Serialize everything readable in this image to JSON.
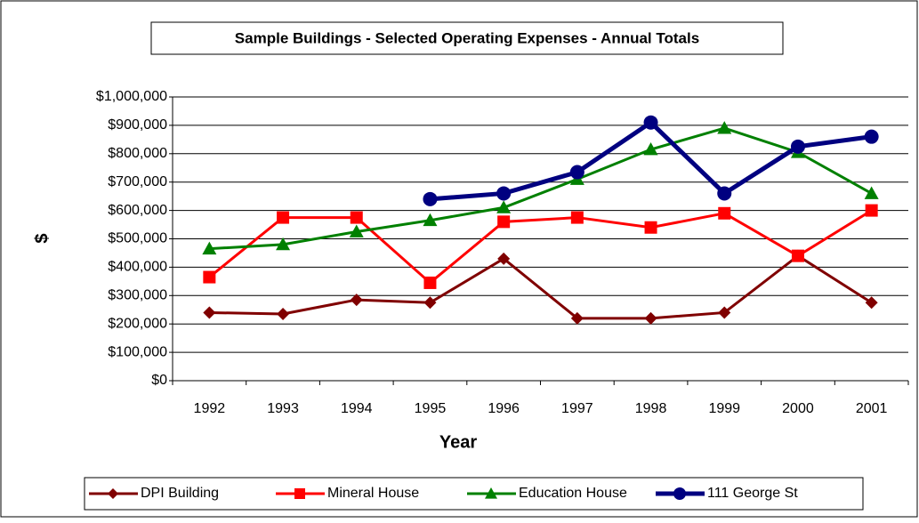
{
  "chart_data": {
    "type": "line",
    "title": "Sample Buildings - Selected Operating Expenses - Annual Totals",
    "xlabel": "Year",
    "ylabel": "$",
    "categories": [
      "1992",
      "1993",
      "1994",
      "1995",
      "1996",
      "1997",
      "1998",
      "1999",
      "2000",
      "2001"
    ],
    "series": [
      {
        "name": "DPI Building",
        "color": "#800000",
        "marker": "diamond",
        "values": [
          240000,
          235000,
          285000,
          275000,
          430000,
          220000,
          220000,
          240000,
          440000,
          275000
        ]
      },
      {
        "name": "Mineral House",
        "color": "#ff0000",
        "marker": "square",
        "values": [
          365000,
          575000,
          575000,
          345000,
          560000,
          575000,
          540000,
          590000,
          440000,
          600000
        ]
      },
      {
        "name": "Education House",
        "color": "#008000",
        "marker": "triangle",
        "values": [
          465000,
          480000,
          525000,
          565000,
          610000,
          710000,
          815000,
          890000,
          805000,
          660000
        ]
      },
      {
        "name": "111 George St",
        "color": "#000080",
        "marker": "circle",
        "values": [
          null,
          null,
          null,
          640000,
          660000,
          735000,
          910000,
          660000,
          825000,
          860000
        ]
      }
    ],
    "ylim": [
      0,
      1000000
    ],
    "yticks": [
      {
        "value": 0,
        "label": "$0"
      },
      {
        "value": 100000,
        "label": "$100,000"
      },
      {
        "value": 200000,
        "label": "$200,000"
      },
      {
        "value": 300000,
        "label": "$300,000"
      },
      {
        "value": 400000,
        "label": "$400,000"
      },
      {
        "value": 500000,
        "label": "$500,000"
      },
      {
        "value": 600000,
        "label": "$600,000"
      },
      {
        "value": 700000,
        "label": "$700,000"
      },
      {
        "value": 800000,
        "label": "$800,000"
      },
      {
        "value": 900000,
        "label": "$900,000"
      },
      {
        "value": 1000000,
        "label": "$1,000,000"
      }
    ],
    "grid": true,
    "legend": "bottom"
  }
}
